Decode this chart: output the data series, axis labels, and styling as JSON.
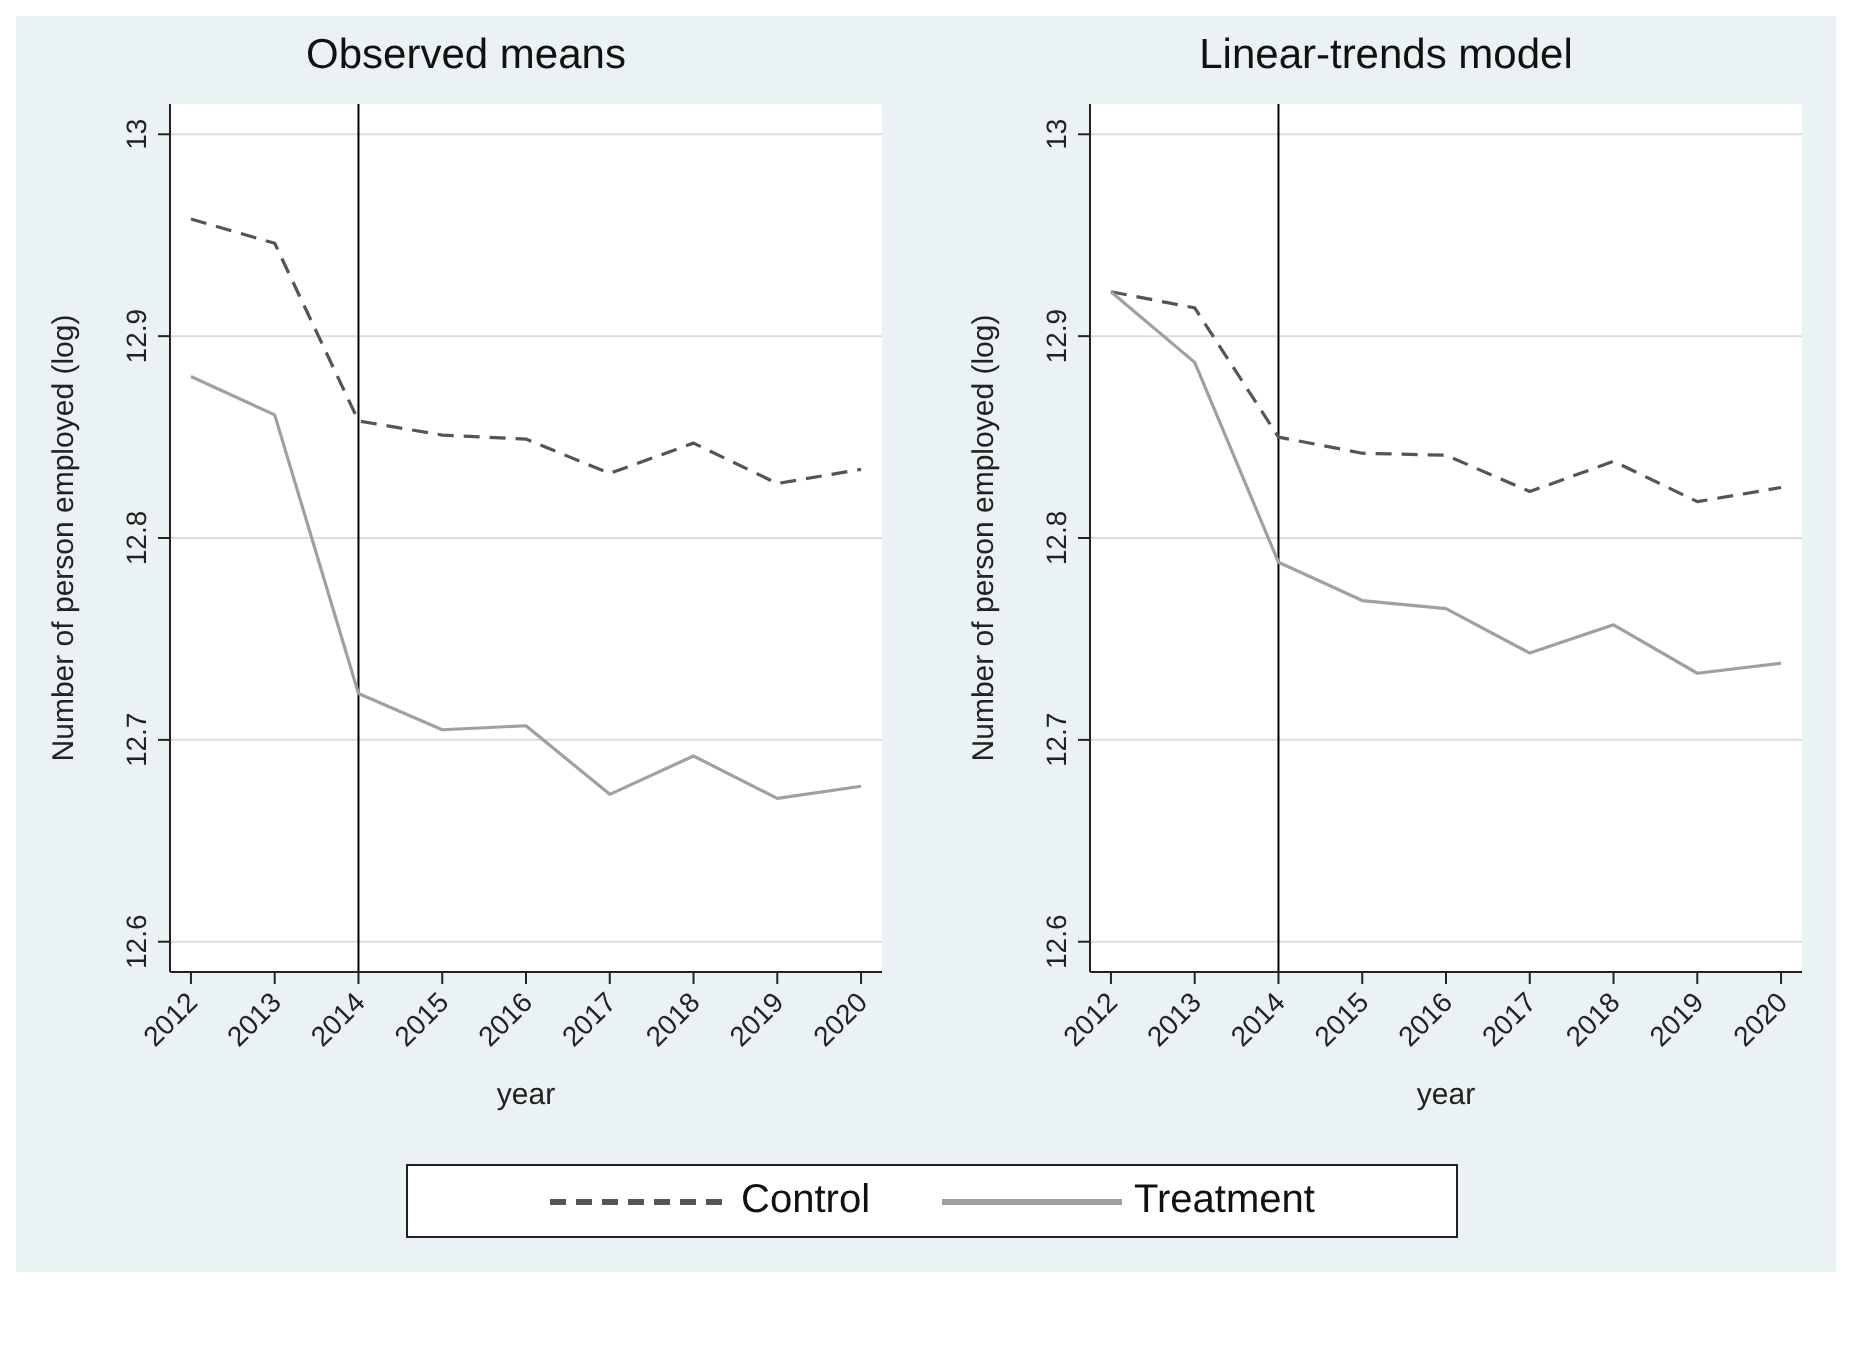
{
  "chart_data": [
    {
      "type": "line",
      "title": "Observed means",
      "xlabel": "year",
      "ylabel": "Number of person employed (log)",
      "x": [
        2012,
        2013,
        2014,
        2015,
        2016,
        2017,
        2018,
        2019,
        2020
      ],
      "series": [
        {
          "name": "Control",
          "color": "#555555",
          "line_style": "dashed",
          "values": [
            12.958,
            12.946,
            12.858,
            12.851,
            12.849,
            12.832,
            12.847,
            12.827,
            12.834
          ]
        },
        {
          "name": "Treatment",
          "color": "#a0a0a0",
          "line_style": "solid",
          "values": [
            12.88,
            12.861,
            12.723,
            12.705,
            12.707,
            12.673,
            12.692,
            12.671,
            12.677
          ]
        }
      ],
      "xlim": [
        2011.75,
        2020.25
      ],
      "xticks": [
        2012,
        2013,
        2014,
        2015,
        2016,
        2017,
        2018,
        2019,
        2020
      ],
      "ylim": [
        12.585,
        13.015
      ],
      "yticks": [
        12.6,
        12.7,
        12.8,
        12.9,
        13
      ],
      "ref_lines": [
        {
          "axis": "x",
          "value": 2014,
          "color": "#000000"
        }
      ],
      "grid": "y",
      "legend": "bottom",
      "marker": "none"
    },
    {
      "type": "line",
      "title": "Linear-trends model",
      "xlabel": "year",
      "ylabel": "Number of person employed (log)",
      "x": [
        2012,
        2013,
        2014,
        2015,
        2016,
        2017,
        2018,
        2019,
        2020
      ],
      "series": [
        {
          "color": "#555555",
          "line_style": "dashed",
          "values": [
            12.922,
            12.914,
            12.85,
            12.842,
            12.841,
            12.823,
            12.838,
            12.818,
            12.825
          ]
        },
        {
          "color": "#a0a0a0",
          "line_style": "solid",
          "values": [
            12.922,
            12.887,
            12.788,
            12.769,
            12.765,
            12.743,
            12.757,
            12.733,
            12.738
          ]
        }
      ],
      "xlim": [
        2011.75,
        2020.25
      ],
      "xticks": [
        2012,
        2013,
        2014,
        2015,
        2016,
        2017,
        2018,
        2019,
        2020
      ],
      "ylim": [
        12.585,
        13.015
      ],
      "yticks": [
        12.6,
        12.7,
        12.8,
        12.9,
        13
      ],
      "ref_lines": [
        {
          "axis": "x",
          "value": 2014,
          "color": "#000000"
        }
      ],
      "grid": "y",
      "marker": "none"
    }
  ]
}
